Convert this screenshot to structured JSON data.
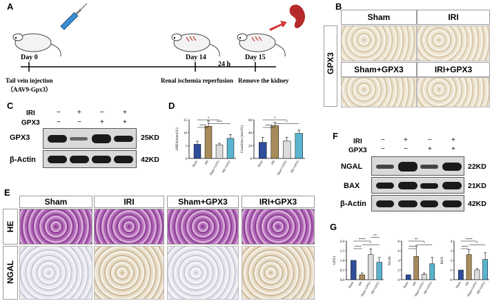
{
  "panels": {
    "A": "A",
    "B": "B",
    "C": "C",
    "D": "D",
    "E": "E",
    "F": "F",
    "G": "G"
  },
  "panel_a": {
    "day0": "Day 0",
    "day14": "Day 14",
    "h24": "24 h",
    "day15": "Day 15",
    "step1_line1": "Tail vein injection",
    "step1_line2": "（AAV9-Gpx3）",
    "step2": "Renal ischemia reperfusion",
    "step3": "Remove the kidney"
  },
  "panel_b": {
    "row_label": "GPX3",
    "headers": [
      "Sham",
      "IRI",
      "Sham+GPX3",
      "IRI+GPX3"
    ]
  },
  "panel_c": {
    "iri_label": "IRI",
    "gpx3_label": "GPX3",
    "iri_signs": [
      "−",
      "+",
      "−",
      "+"
    ],
    "gpx3_signs": [
      "−",
      "−",
      "+",
      "+"
    ],
    "rows": [
      {
        "name": "GPX3",
        "kd": "25KD"
      },
      {
        "name": "β-Actin",
        "kd": "42KD"
      }
    ]
  },
  "panel_d": {
    "significance": [
      "****",
      "***",
      "*",
      "****",
      "*",
      "*"
    ]
  },
  "panel_e": {
    "headers": [
      "Sham",
      "IRI",
      "Sham+GPX3",
      "IRI+GPX3"
    ],
    "rows": [
      "HE",
      "NGAL"
    ]
  },
  "panel_f": {
    "iri_label": "IRI",
    "gpx3_label": "GPX3",
    "iri_signs": [
      "−",
      "+",
      "−",
      "+"
    ],
    "gpx3_signs": [
      "−",
      "−",
      "+",
      "+"
    ],
    "rows": [
      {
        "name": "NGAL",
        "kd": "22KD"
      },
      {
        "name": "BAX",
        "kd": "21KD"
      },
      {
        "name": "β-Actin",
        "kd": "42KD"
      }
    ]
  },
  "chart_data": [
    {
      "type": "bar",
      "panel": "D",
      "categories": [
        "Sham",
        "IRI",
        "Sham+GPX3",
        "IRI+GPX3"
      ],
      "ylabel": "UREA(mmol/L)",
      "yticks": [
        0,
        5,
        10,
        15
      ],
      "ylim": [
        0,
        15
      ],
      "values": [
        5.5,
        12.5,
        5.3,
        7.8
      ],
      "errors": [
        1.2,
        2.2,
        0.6,
        1.5
      ],
      "colors": [
        "#2e4d9b",
        "#a78b5a",
        "#dcdcdc",
        "#5ab4cf"
      ],
      "sig": [
        "****",
        "***",
        "*"
      ]
    },
    {
      "type": "bar",
      "panel": "D",
      "categories": [
        "Sham",
        "IRI",
        "Sham+GPX3",
        "IRI+GPX3"
      ],
      "ylabel": "Creatinine (umol/L)",
      "yticks": [
        0,
        20,
        40,
        60
      ],
      "ylim": [
        0,
        60
      ],
      "values": [
        25,
        51,
        27,
        39
      ],
      "errors": [
        8,
        5,
        6,
        5
      ],
      "colors": [
        "#2e4d9b",
        "#a78b5a",
        "#dcdcdc",
        "#5ab4cf"
      ],
      "sig": [
        "****",
        "*",
        "*"
      ]
    },
    {
      "type": "bar",
      "panel": "G",
      "categories": [
        "Sham",
        "IRI",
        "Sham+GPX3",
        "IRI+GPX3"
      ],
      "ylabel": "GPX3",
      "yticks": [
        0.0,
        0.5,
        1.0,
        1.5,
        2.0
      ],
      "ylim": [
        0,
        2.0
      ],
      "values": [
        1.0,
        0.25,
        1.3,
        0.9
      ],
      "errors": [
        0.0,
        0.1,
        0.3,
        0.25
      ],
      "colors": [
        "#2e4d9b",
        "#a78b5a",
        "#dcdcdc",
        "#5ab4cf"
      ],
      "sig": [
        "****",
        "*",
        "****",
        "**"
      ]
    },
    {
      "type": "bar",
      "panel": "G",
      "categories": [
        "Sham",
        "IRI",
        "Sham+GPX3",
        "IRI+GPX3"
      ],
      "ylabel": "NGAL",
      "yticks": [
        0,
        2,
        4,
        6,
        8
      ],
      "ylim": [
        0,
        8
      ],
      "values": [
        1.0,
        4.8,
        1.1,
        3.3
      ],
      "errors": [
        0.0,
        2.2,
        0.3,
        1.3
      ],
      "colors": [
        "#2e4d9b",
        "#a78b5a",
        "#dcdcdc",
        "#5ab4cf"
      ],
      "sig": [
        "****",
        "*",
        "**"
      ]
    },
    {
      "type": "bar",
      "panel": "G",
      "categories": [
        "Sham",
        "IRI",
        "Sham+GPX3",
        "IRI+GPX3"
      ],
      "ylabel": "BAX",
      "yticks": [
        0,
        1,
        2,
        3,
        4
      ],
      "ylim": [
        0,
        4
      ],
      "values": [
        1.0,
        2.6,
        1.0,
        2.1
      ],
      "errors": [
        0.0,
        0.5,
        0.15,
        0.7
      ],
      "colors": [
        "#2e4d9b",
        "#a78b5a",
        "#dcdcdc",
        "#5ab4cf"
      ],
      "sig": [
        "****",
        "*",
        "****"
      ]
    }
  ]
}
